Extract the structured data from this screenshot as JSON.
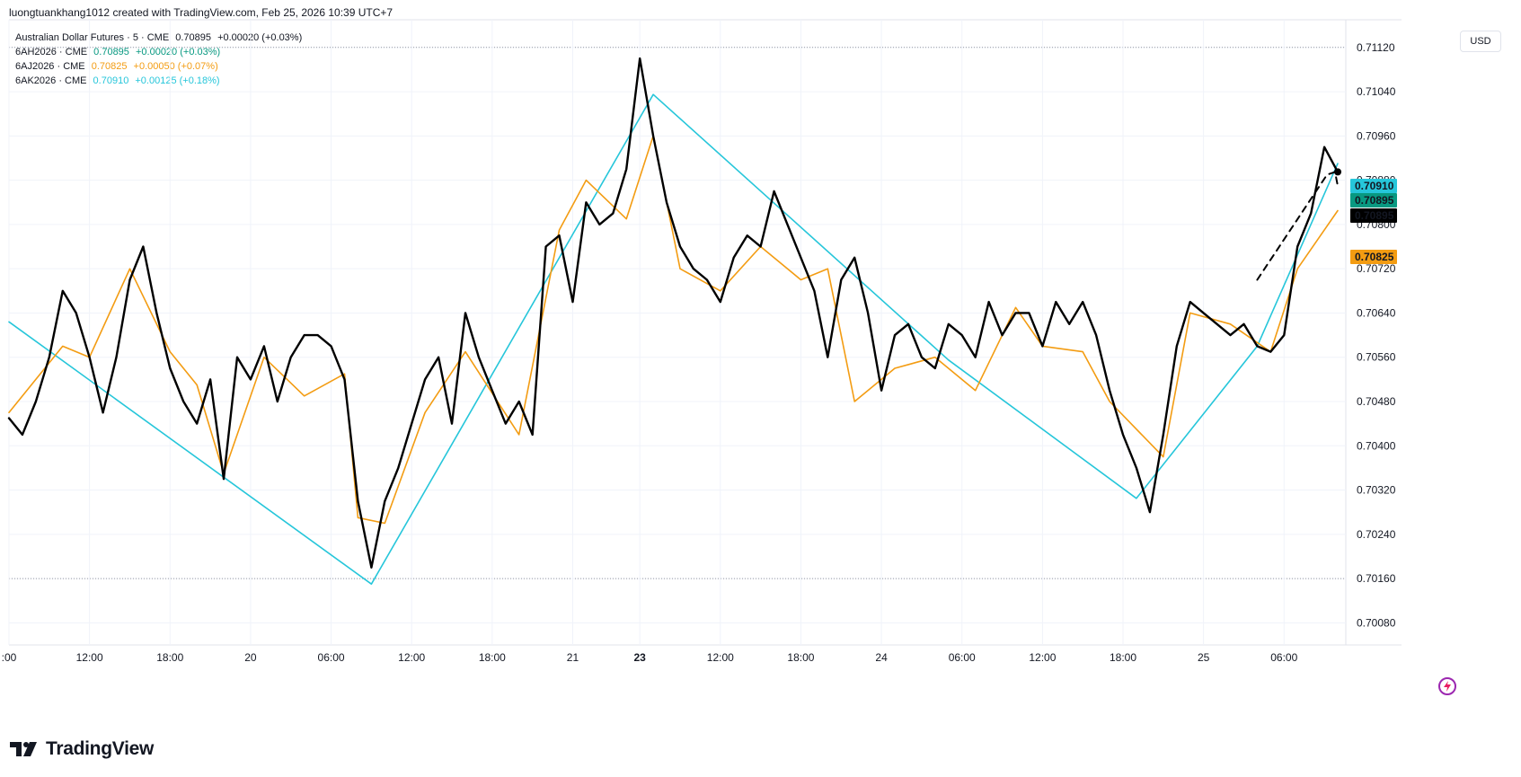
{
  "header": {
    "title": "luongtuankhang1012 created with TradingView.com, Feb 25, 2026 10:39 UTC+7"
  },
  "legend": [
    {
      "symbol": "Australian Dollar Futures · 5 · CME",
      "price": "0.70895",
      "change": "+0.00020 (+0.03%)",
      "color": "#131722"
    },
    {
      "symbol": "6AH2026 · CME",
      "price": "0.70895",
      "change": "+0.00020 (+0.03%)",
      "color": "#089981"
    },
    {
      "symbol": "6AJ2026 · CME",
      "price": "0.70825",
      "change": "+0.00050 (+0.07%)",
      "color": "#f39c12"
    },
    {
      "symbol": "6AK2026 · CME",
      "price": "0.70910",
      "change": "+0.00125 (+0.18%)",
      "color": "#26c6da"
    }
  ],
  "currency": "USD",
  "brand": "TradingView",
  "chart_data": {
    "type": "line",
    "ylim": [
      0.7004,
      0.7117
    ],
    "y_ticks": [
      "0.71120",
      "0.71040",
      "0.70960",
      "0.70880",
      "0.70800",
      "0.70720",
      "0.70640",
      "0.70560",
      "0.70480",
      "0.70400",
      "0.70320",
      "0.70240",
      "0.70160",
      "0.70080"
    ],
    "x_ticks": [
      {
        "t": 0,
        "label": ":00"
      },
      {
        "t": 6,
        "label": "12:00"
      },
      {
        "t": 12,
        "label": "18:00"
      },
      {
        "t": 18,
        "label": "20"
      },
      {
        "t": 24,
        "label": "06:00"
      },
      {
        "t": 30,
        "label": "12:00"
      },
      {
        "t": 36,
        "label": "18:00"
      },
      {
        "t": 42,
        "label": "21"
      },
      {
        "t": 47,
        "label": "23"
      },
      {
        "t": 53,
        "label": "12:00"
      },
      {
        "t": 59,
        "label": "18:00"
      },
      {
        "t": 65,
        "label": "24"
      },
      {
        "t": 71,
        "label": "06:00"
      },
      {
        "t": 77,
        "label": "12:00"
      },
      {
        "t": 83,
        "label": "18:00"
      },
      {
        "t": 89,
        "label": "25"
      },
      {
        "t": 95,
        "label": "06:00"
      }
    ],
    "price_labels": [
      {
        "value": "0.70910",
        "color": "#26c6da"
      },
      {
        "value": "0.70895",
        "color": "#089981"
      },
      {
        "value": "0.70895",
        "color": "#000000"
      },
      {
        "value": "0.70825",
        "color": "#f39c12"
      }
    ],
    "series": [
      {
        "role": "zigzag",
        "color": "#26c6da",
        "points": [
          [
            0,
            0.70624
          ],
          [
            27,
            0.7015
          ],
          [
            48,
            0.71035
          ],
          [
            70,
            0.70555
          ],
          [
            84,
            0.70305
          ],
          [
            93,
            0.7058
          ],
          [
            99,
            0.7091
          ]
        ]
      },
      {
        "role": "swing",
        "color": "#f39c12",
        "points": [
          [
            0,
            0.7046
          ],
          [
            4,
            0.7058
          ],
          [
            6,
            0.7056
          ],
          [
            9,
            0.7072
          ],
          [
            12,
            0.7057
          ],
          [
            14,
            0.7051
          ],
          [
            16,
            0.7035
          ],
          [
            19,
            0.7056
          ],
          [
            22,
            0.7049
          ],
          [
            25,
            0.7053
          ],
          [
            26,
            0.7027
          ],
          [
            28,
            0.7026
          ],
          [
            31,
            0.7046
          ],
          [
            34,
            0.7057
          ],
          [
            38,
            0.7042
          ],
          [
            41,
            0.7079
          ],
          [
            43,
            0.7088
          ],
          [
            46,
            0.7081
          ],
          [
            48,
            0.7096
          ],
          [
            50,
            0.7072
          ],
          [
            53,
            0.7068
          ],
          [
            56,
            0.7076
          ],
          [
            59,
            0.707
          ],
          [
            61,
            0.7072
          ],
          [
            63,
            0.7048
          ],
          [
            66,
            0.7054
          ],
          [
            69,
            0.7056
          ],
          [
            72,
            0.705
          ],
          [
            75,
            0.7065
          ],
          [
            77,
            0.7058
          ],
          [
            80,
            0.7057
          ],
          [
            82,
            0.7048
          ],
          [
            86,
            0.7038
          ],
          [
            88,
            0.7064
          ],
          [
            91,
            0.7062
          ],
          [
            94,
            0.7057
          ],
          [
            96,
            0.7072
          ],
          [
            99,
            0.70825
          ]
        ]
      },
      {
        "role": "main",
        "color": "#000000",
        "points": [
          [
            0,
            0.7045
          ],
          [
            1,
            0.7042
          ],
          [
            2,
            0.7048
          ],
          [
            3,
            0.7056
          ],
          [
            4,
            0.7068
          ],
          [
            5,
            0.7064
          ],
          [
            6,
            0.7056
          ],
          [
            7,
            0.7046
          ],
          [
            8,
            0.7056
          ],
          [
            9,
            0.707
          ],
          [
            10,
            0.7076
          ],
          [
            11,
            0.7064
          ],
          [
            12,
            0.7054
          ],
          [
            13,
            0.7048
          ],
          [
            14,
            0.7044
          ],
          [
            15,
            0.7052
          ],
          [
            16,
            0.7034
          ],
          [
            17,
            0.7056
          ],
          [
            18,
            0.7052
          ],
          [
            19,
            0.7058
          ],
          [
            20,
            0.7048
          ],
          [
            21,
            0.7056
          ],
          [
            22,
            0.706
          ],
          [
            23,
            0.706
          ],
          [
            24,
            0.7058
          ],
          [
            25,
            0.7052
          ],
          [
            26,
            0.703
          ],
          [
            27,
            0.7018
          ],
          [
            28,
            0.703
          ],
          [
            29,
            0.7036
          ],
          [
            30,
            0.7044
          ],
          [
            31,
            0.7052
          ],
          [
            32,
            0.7056
          ],
          [
            33,
            0.7044
          ],
          [
            34,
            0.7064
          ],
          [
            35,
            0.7056
          ],
          [
            36,
            0.705
          ],
          [
            37,
            0.7044
          ],
          [
            38,
            0.7048
          ],
          [
            39,
            0.7042
          ],
          [
            40,
            0.7076
          ],
          [
            41,
            0.7078
          ],
          [
            42,
            0.7066
          ],
          [
            43,
            0.7084
          ],
          [
            44,
            0.708
          ],
          [
            45,
            0.7082
          ],
          [
            46,
            0.709
          ],
          [
            47,
            0.711
          ],
          [
            48,
            0.7096
          ],
          [
            49,
            0.7084
          ],
          [
            50,
            0.7076
          ],
          [
            51,
            0.7072
          ],
          [
            52,
            0.707
          ],
          [
            53,
            0.7066
          ],
          [
            54,
            0.7074
          ],
          [
            55,
            0.7078
          ],
          [
            56,
            0.7076
          ],
          [
            57,
            0.7086
          ],
          [
            58,
            0.708
          ],
          [
            59,
            0.7074
          ],
          [
            60,
            0.7068
          ],
          [
            61,
            0.7056
          ],
          [
            62,
            0.707
          ],
          [
            63,
            0.7074
          ],
          [
            64,
            0.7064
          ],
          [
            65,
            0.705
          ],
          [
            66,
            0.706
          ],
          [
            67,
            0.7062
          ],
          [
            68,
            0.7056
          ],
          [
            69,
            0.7054
          ],
          [
            70,
            0.7062
          ],
          [
            71,
            0.706
          ],
          [
            72,
            0.7056
          ],
          [
            73,
            0.7066
          ],
          [
            74,
            0.706
          ],
          [
            75,
            0.7064
          ],
          [
            76,
            0.7064
          ],
          [
            77,
            0.7058
          ],
          [
            78,
            0.7066
          ],
          [
            79,
            0.7062
          ],
          [
            80,
            0.7066
          ],
          [
            81,
            0.706
          ],
          [
            82,
            0.705
          ],
          [
            83,
            0.7042
          ],
          [
            84,
            0.7036
          ],
          [
            85,
            0.7028
          ],
          [
            86,
            0.7042
          ],
          [
            87,
            0.7058
          ],
          [
            88,
            0.7066
          ],
          [
            89,
            0.7064
          ],
          [
            90,
            0.7062
          ],
          [
            91,
            0.706
          ],
          [
            92,
            0.7062
          ],
          [
            93,
            0.7058
          ],
          [
            94,
            0.7057
          ],
          [
            95,
            0.706
          ],
          [
            96,
            0.7076
          ],
          [
            97,
            0.7082
          ],
          [
            98,
            0.7094
          ],
          [
            99,
            0.70895
          ]
        ]
      },
      {
        "role": "projection",
        "color": "#000000",
        "dashed": true,
        "points": [
          [
            93,
            0.707
          ],
          [
            98.2,
            0.7089
          ],
          [
            98.8,
            0.70895
          ],
          [
            99,
            0.7087
          ]
        ]
      }
    ]
  }
}
